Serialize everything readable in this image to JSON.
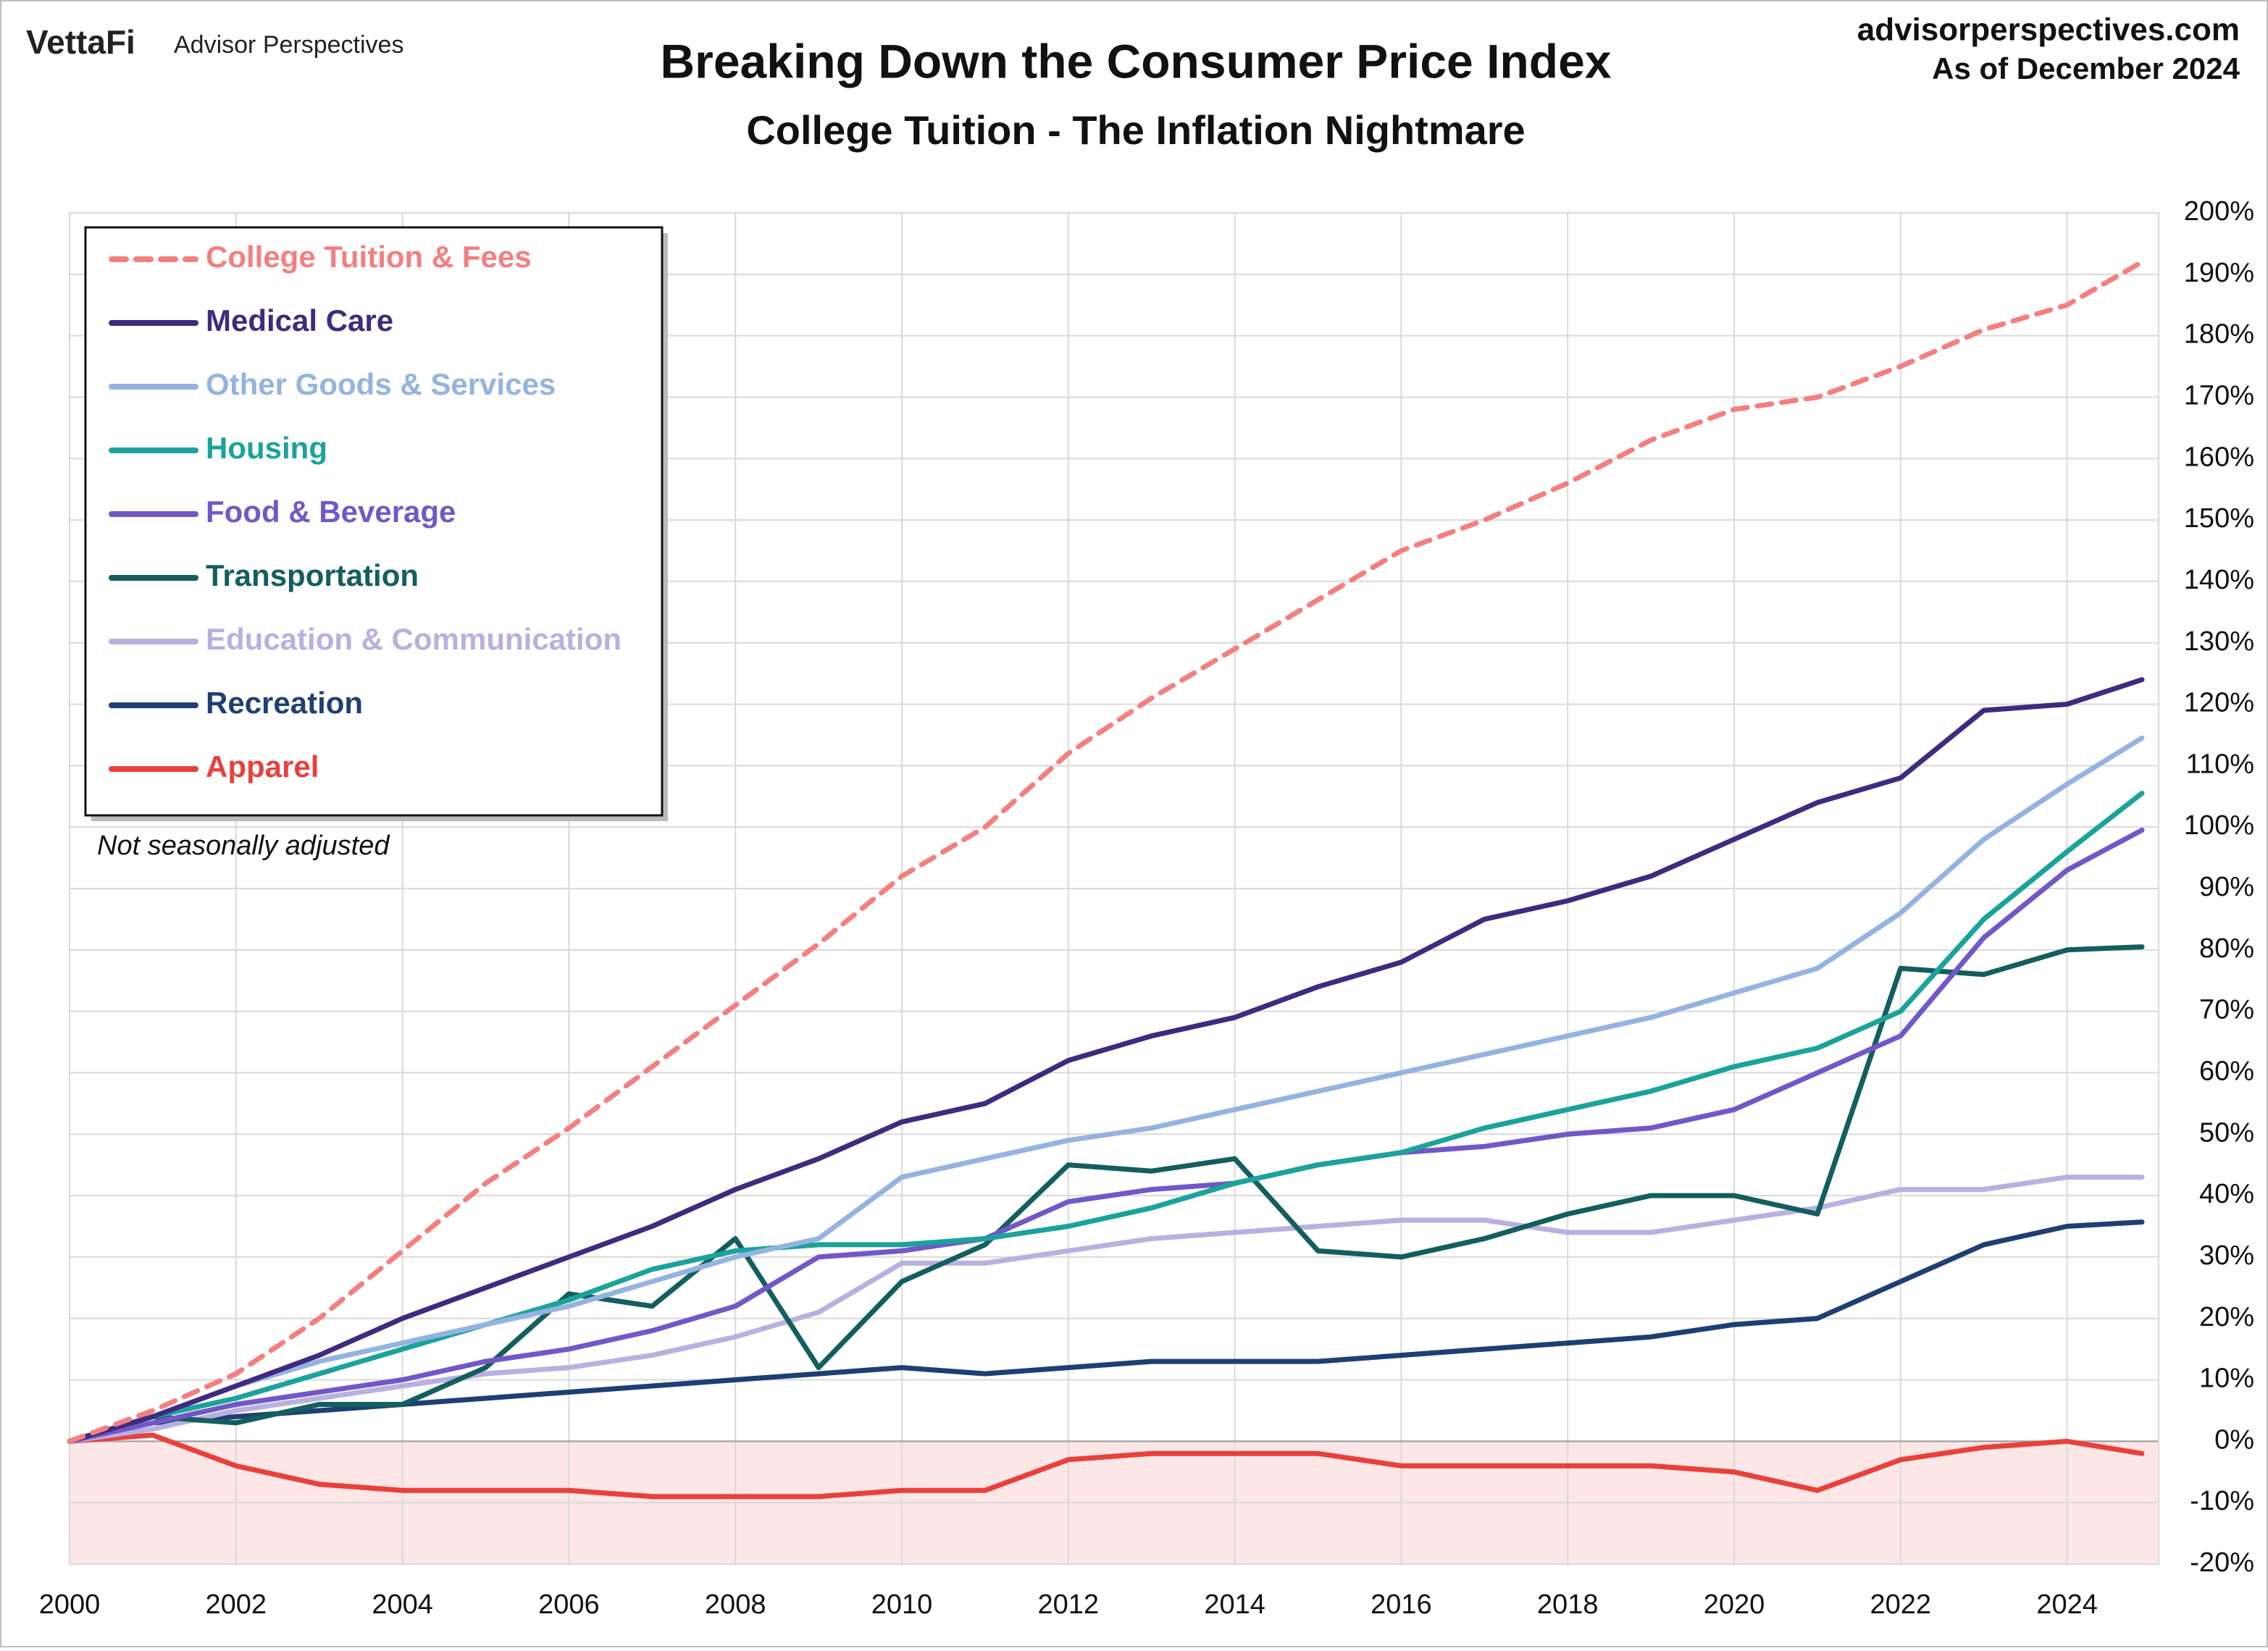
{
  "chart_data": {
    "type": "line",
    "logo": "VettaFi",
    "logo_text": "Advisor Perspectives",
    "website": "advisorperspectives.com",
    "as_of": "As of December 2024",
    "title": "Breaking Down the Consumer Price Index",
    "subtitle": "College Tuition - The Inflation Nightmare",
    "note": "Not seasonally adjusted",
    "x": [
      2000,
      2001,
      2002,
      2003,
      2004,
      2005,
      2006,
      2007,
      2008,
      2009,
      2010,
      2011,
      2012,
      2013,
      2014,
      2015,
      2016,
      2017,
      2018,
      2019,
      2020,
      2021,
      2022,
      2023,
      2024,
      2024.9
    ],
    "series": [
      {
        "name": "College Tuition & Fees",
        "color": "#f47f7f",
        "dashed": true,
        "values": [
          0,
          5,
          11,
          20,
          31,
          42,
          51,
          61,
          71,
          81,
          92,
          100,
          112,
          121,
          129,
          137,
          145,
          150,
          156,
          163,
          168,
          170,
          175,
          181,
          185,
          192
        ]
      },
      {
        "name": "Medical Care",
        "color": "#3f2a80",
        "values": [
          0,
          4,
          9,
          14,
          20,
          25,
          30,
          35,
          41,
          46,
          52,
          55,
          62,
          66,
          69,
          74,
          78,
          85,
          88,
          92,
          98,
          104,
          108,
          119,
          120,
          124
        ]
      },
      {
        "name": "Other Goods & Services",
        "color": "#94b3e0",
        "values": [
          0,
          4,
          9,
          13,
          16,
          19,
          22,
          26,
          30,
          33,
          43,
          46,
          49,
          51,
          54,
          57,
          60,
          63,
          66,
          69,
          73,
          77,
          86,
          98,
          107,
          114.5
        ]
      },
      {
        "name": "Housing",
        "color": "#1aa39b",
        "values": [
          0,
          4,
          7,
          11,
          15,
          19,
          23,
          28,
          31,
          32,
          32,
          33,
          35,
          38,
          42,
          45,
          47,
          51,
          54,
          57,
          61,
          64,
          70,
          85,
          96,
          105.5
        ]
      },
      {
        "name": "Food & Beverage",
        "color": "#7257c8",
        "values": [
          0,
          3,
          6,
          8,
          10,
          13,
          15,
          18,
          22,
          30,
          31,
          33,
          39,
          41,
          42,
          45,
          47,
          48,
          50,
          51,
          54,
          60,
          66,
          82,
          93,
          99.5
        ]
      },
      {
        "name": "Transportation",
        "color": "#135e5e",
        "values": [
          0,
          4,
          3,
          6,
          6,
          12,
          24,
          22,
          33,
          12,
          26,
          32,
          45,
          44,
          46,
          31,
          30,
          33,
          37,
          40,
          40,
          37,
          77,
          76,
          80,
          80.5
        ]
      },
      {
        "name": "Education & Communication",
        "color": "#b8b0e0",
        "values": [
          0,
          2,
          5,
          7,
          9,
          11,
          12,
          14,
          17,
          21,
          29,
          29,
          31,
          33,
          34,
          35,
          36,
          36,
          34,
          34,
          36,
          38,
          41,
          41,
          43,
          43
        ]
      },
      {
        "name": "Recreation",
        "color": "#1f3f73",
        "values": [
          0,
          3,
          4,
          5,
          6,
          7,
          8,
          9,
          10,
          11,
          12,
          11,
          12,
          13,
          13,
          13,
          14,
          15,
          16,
          17,
          19,
          20,
          26,
          32,
          35,
          35.7
        ]
      },
      {
        "name": "Apparel",
        "color": "#e8413c",
        "values": [
          0,
          1,
          -4,
          -7,
          -8,
          -8,
          -8,
          -9,
          -9,
          -9,
          -8,
          -8,
          -3,
          -2,
          -2,
          -2,
          -4,
          -4,
          -4,
          -4,
          -5,
          -8,
          -3,
          -1,
          0,
          -2
        ]
      }
    ],
    "xlim": [
      2000,
      2025.1
    ],
    "xticks": [
      2000,
      2002,
      2004,
      2006,
      2008,
      2010,
      2012,
      2014,
      2016,
      2018,
      2020,
      2022,
      2024
    ],
    "ylim": [
      -20,
      200
    ],
    "yticks": [
      {
        "value": -20,
        "label": "-20%"
      },
      {
        "value": -10,
        "label": "-10%"
      },
      {
        "value": 0,
        "label": "0%"
      },
      {
        "value": 10,
        "label": "10%"
      },
      {
        "value": 20,
        "label": "20%"
      },
      {
        "value": 30,
        "label": "30%"
      },
      {
        "value": 40,
        "label": "40%"
      },
      {
        "value": 50,
        "label": "50%"
      },
      {
        "value": 60,
        "label": "60%"
      },
      {
        "value": 70,
        "label": "70%"
      },
      {
        "value": 80,
        "label": "80%"
      },
      {
        "value": 90,
        "label": "90%"
      },
      {
        "value": 100,
        "label": "100%"
      },
      {
        "value": 110,
        "label": "110%"
      },
      {
        "value": 120,
        "label": "120%"
      },
      {
        "value": 130,
        "label": "130%"
      },
      {
        "value": 140,
        "label": "140%"
      },
      {
        "value": 150,
        "label": "150%"
      },
      {
        "value": 160,
        "label": "160%"
      },
      {
        "value": 170,
        "label": "170%"
      },
      {
        "value": 180,
        "label": "180%"
      },
      {
        "value": 190,
        "label": "190%"
      },
      {
        "value": 200,
        "label": "200%"
      }
    ],
    "grid": true,
    "negative_shade": "#fde6e6",
    "legend": "upper left"
  }
}
